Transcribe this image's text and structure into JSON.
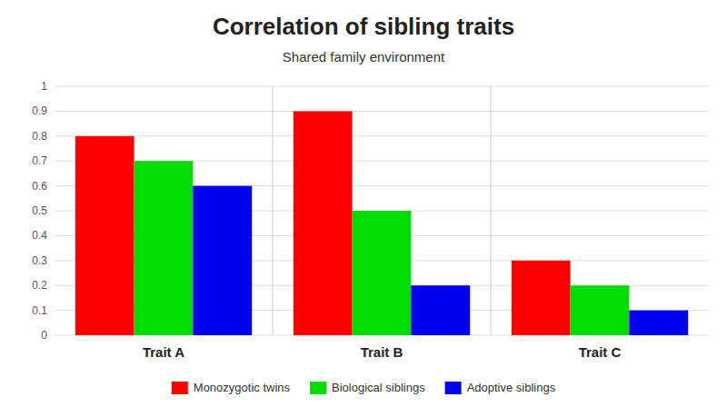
{
  "chart_data": {
    "type": "bar",
    "title": "Correlation of sibling traits",
    "subtitle": "Shared family environment",
    "categories": [
      "Trait A",
      "Trait B",
      "Trait C"
    ],
    "series": [
      {
        "name": "Monozygotic twins",
        "color": "#ff0000",
        "values": [
          0.8,
          0.9,
          0.3
        ]
      },
      {
        "name": "Biological siblings",
        "color": "#00dd00",
        "values": [
          0.7,
          0.5,
          0.2
        ]
      },
      {
        "name": "Adoptive siblings",
        "color": "#0000ee",
        "values": [
          0.6,
          0.2,
          0.1
        ]
      }
    ],
    "ylim": [
      0,
      1.0
    ],
    "yticks": [
      0,
      0.1,
      0.2,
      0.3,
      0.4,
      0.5,
      0.6,
      0.7,
      0.8,
      0.9,
      1
    ],
    "grid": true,
    "legend": "bottom"
  }
}
